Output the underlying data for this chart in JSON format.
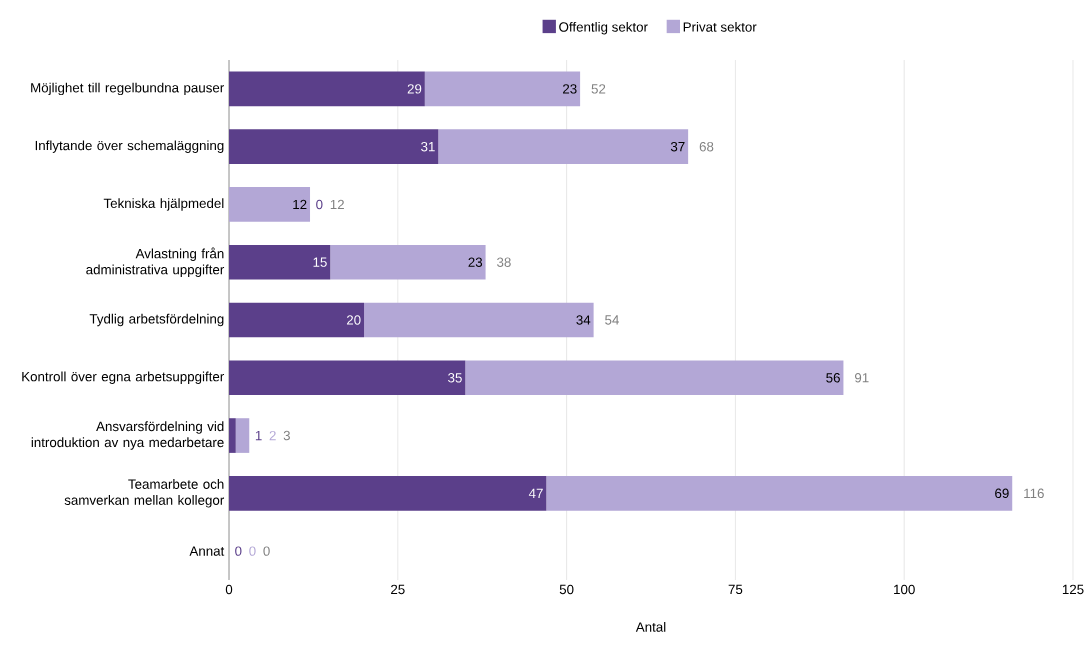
{
  "chart_data": {
    "type": "bar",
    "orientation": "horizontal",
    "stacked": true,
    "categories": [
      "Möjlighet till regelbundna pauser",
      "Inflytande över schemaläggning",
      "Tekniska hjälpmedel",
      "Avlastning från administrativa uppgifter",
      "Tydlig arbetsfördelning",
      "Kontroll över egna arbetsuppgifter",
      "Ansvarsfördelning vid introduktion av nya medarbetare",
      "Teamarbete och samverkan mellan kollegor",
      "Annat"
    ],
    "series": [
      {
        "name": "Offentlig sektor",
        "color": "#5b3f8a",
        "values": [
          29,
          31,
          0,
          15,
          20,
          35,
          1,
          47,
          0
        ]
      },
      {
        "name": "Privat sektor",
        "color": "#b3a7d6",
        "values": [
          23,
          37,
          12,
          23,
          34,
          56,
          2,
          69,
          0
        ]
      }
    ],
    "totals": [
      "52",
      "68",
      "12",
      "38",
      "54",
      "91",
      "3",
      "116",
      "0"
    ],
    "data_labels": true,
    "xlabel": "Antal",
    "xlim": [
      0,
      125
    ],
    "xticks": [
      0,
      25,
      50,
      75,
      100,
      125
    ],
    "grid": "x",
    "legend": "top"
  }
}
